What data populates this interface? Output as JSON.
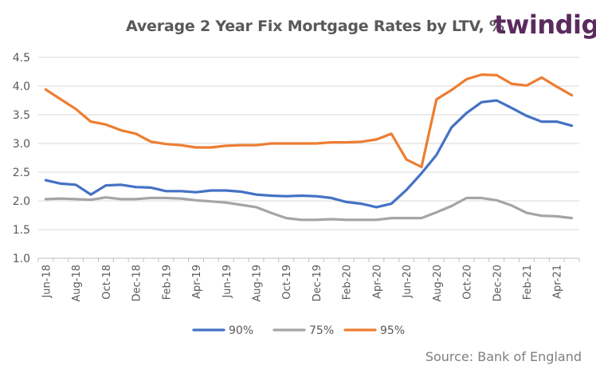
{
  "title": "Average 2 Year Fix Mortgage Rates by LTV, %",
  "logo": "twindig",
  "source": "Source: Bank of England",
  "chart_data": {
    "type": "line",
    "title": "Average 2 Year Fix Mortgage Rates by LTV, %",
    "xlabel": "",
    "ylabel": "",
    "ylim": [
      1.0,
      4.5
    ],
    "yticks": [
      "1.0",
      "1.5",
      "2.0",
      "2.5",
      "3.0",
      "3.5",
      "4.0",
      "4.5"
    ],
    "grid": "horizontal",
    "legend_position": "bottom",
    "categories": [
      "Jun-18",
      "Jul-18",
      "Aug-18",
      "Sep-18",
      "Oct-18",
      "Nov-18",
      "Dec-18",
      "Jan-19",
      "Feb-19",
      "Mar-19",
      "Apr-19",
      "May-19",
      "Jun-19",
      "Jul-19",
      "Aug-19",
      "Sep-19",
      "Oct-19",
      "Nov-19",
      "Dec-19",
      "Jan-20",
      "Feb-20",
      "Mar-20",
      "Apr-20",
      "May-20",
      "Jun-20",
      "Jul-20",
      "Aug-20",
      "Sep-20",
      "Oct-20",
      "Nov-20",
      "Dec-20",
      "Jan-21",
      "Feb-21",
      "Mar-21",
      "Apr-21",
      "May-21"
    ],
    "x_tick_labels": [
      "Jun-18",
      "Aug-18",
      "Oct-18",
      "Dec-18",
      "Feb-19",
      "Apr-19",
      "Jun-19",
      "Aug-19",
      "Oct-19",
      "Dec-19",
      "Feb-20",
      "Apr-20",
      "Jun-20",
      "Aug-20",
      "Oct-20",
      "Dec-20",
      "Feb-21",
      "Apr-21"
    ],
    "series": [
      {
        "name": "90%",
        "color": "#4472c4",
        "values": [
          2.36,
          2.3,
          2.28,
          2.11,
          2.27,
          2.28,
          2.24,
          2.23,
          2.17,
          2.17,
          2.15,
          2.18,
          2.18,
          2.16,
          2.11,
          2.09,
          2.08,
          2.09,
          2.08,
          2.05,
          1.98,
          1.95,
          1.89,
          1.95,
          2.19,
          2.48,
          2.8,
          3.28,
          3.53,
          3.72,
          3.75,
          3.62,
          3.48,
          3.38,
          3.38,
          3.31
        ]
      },
      {
        "name": "75%",
        "color": "#a5a5a5",
        "values": [
          2.03,
          2.04,
          2.03,
          2.02,
          2.06,
          2.03,
          2.03,
          2.05,
          2.05,
          2.04,
          2.01,
          1.99,
          1.97,
          1.93,
          1.89,
          1.79,
          1.7,
          1.67,
          1.67,
          1.68,
          1.67,
          1.67,
          1.67,
          1.7,
          1.7,
          1.7,
          1.8,
          1.91,
          2.05,
          2.05,
          2.01,
          1.92,
          1.79,
          1.74,
          1.73,
          1.7
        ]
      },
      {
        "name": "95%",
        "color": "#ed7d31",
        "values": [
          3.94,
          3.77,
          3.6,
          3.38,
          3.33,
          3.23,
          3.17,
          3.03,
          2.99,
          2.97,
          2.93,
          2.93,
          2.96,
          2.97,
          2.97,
          3.0,
          3.0,
          3.0,
          3.0,
          3.02,
          3.02,
          3.03,
          3.07,
          3.17,
          2.72,
          2.59,
          3.77,
          3.93,
          4.12,
          4.2,
          4.19,
          4.04,
          4.01,
          4.15,
          3.99,
          3.84
        ]
      }
    ]
  }
}
